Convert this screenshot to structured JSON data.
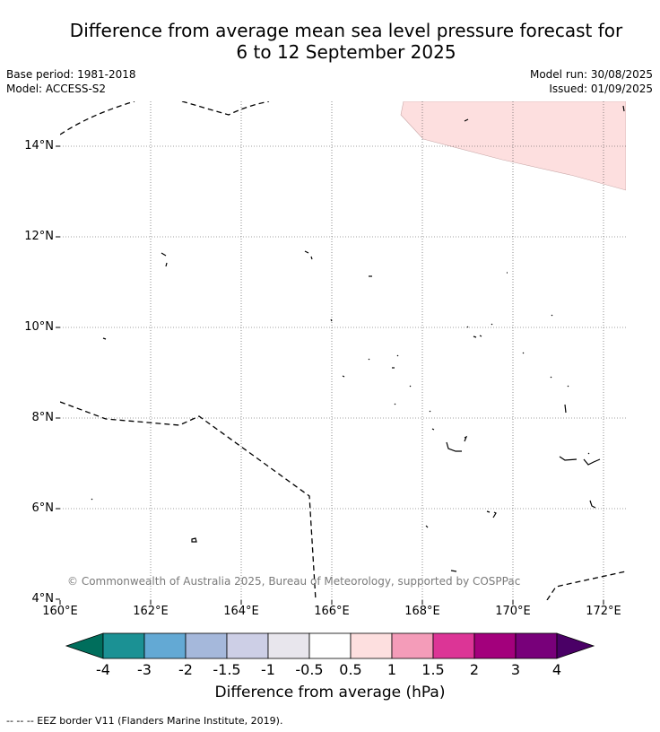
{
  "title_line1": "Difference from average mean sea level pressure forecast for",
  "title_line2": "6 to 12 September 2025",
  "meta": {
    "base_period": "Base period: 1981-2018",
    "model": "Model: ACCESS-S2",
    "model_run": "Model run: 30/08/2025",
    "issued": "Issued: 01/09/2025"
  },
  "map": {
    "lat_labels": [
      "14°N",
      "12°N",
      "10°N",
      "8°N",
      "6°N",
      "4°N"
    ],
    "lon_labels": [
      "160°E",
      "162°E",
      "164°E",
      "166°E",
      "168°E",
      "170°E",
      "172°E"
    ],
    "anomaly_region": {
      "category": "0.5 to 1",
      "color": "#fddfdf",
      "location": "north-east corner"
    },
    "gridlines": true
  },
  "copyright": "© Commonwealth of Australia 2025, Bureau of Meteorology, supported by COSPPac",
  "colorbar": {
    "labels": [
      "-4",
      "-3",
      "-2",
      "-1.5",
      "-1",
      "-0.5",
      "0.5",
      "1",
      "1.5",
      "2",
      "3",
      "4"
    ],
    "colors": [
      "#006e5c",
      "#1b9194",
      "#63a9d4",
      "#a5b8db",
      "#cdcfe6",
      "#e8e6ed",
      "#ffffff",
      "#fddfdf",
      "#f49cb9",
      "#dc3596",
      "#a3007c",
      "#78007a",
      "#4a0066"
    ],
    "title": "Difference from average (hPa)"
  },
  "footer": "--  --  -- EEZ border V11 (Flanders Marine Institute, 2019)."
}
